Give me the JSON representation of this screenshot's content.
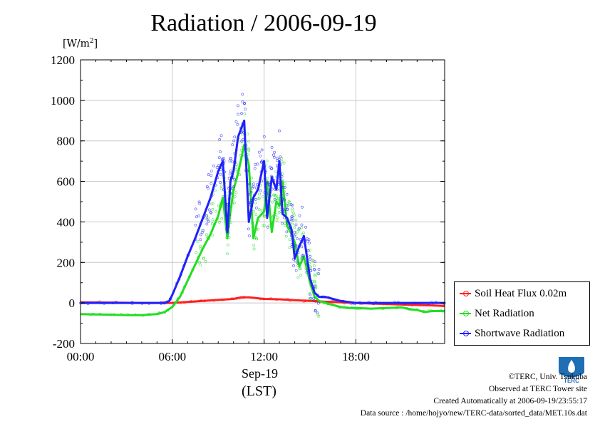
{
  "page": {
    "title": "Radiation / 2006-09-19",
    "y_unit_prefix": "[W/m",
    "y_unit_exp": "2",
    "y_unit_suffix": "]",
    "x_date": "Sep-19",
    "x_zone": "(LST)"
  },
  "credits": {
    "line1": "©TERC, Univ. Tsukuba",
    "line2": "Observed at TERC Tower site",
    "line3": "Created Automatically at 2006-09-19/23:55:17",
    "line4": "Data source : /home/hojyo/new/TERC-data/sorted_data/MET.10s.dat"
  },
  "logo": {
    "label": "TERC"
  },
  "chart_data": {
    "type": "line",
    "title": "Radiation / 2006-09-19",
    "ylabel": "[W/m2]",
    "xlabel": "Sep-19 (LST)",
    "xlim": [
      0,
      23.8
    ],
    "ylim": [
      -200,
      1200
    ],
    "x_ticks": [
      0,
      6,
      12,
      18
    ],
    "x_tick_labels": [
      "00:00",
      "06:00",
      "12:00",
      "18:00"
    ],
    "y_ticks": [
      -200,
      0,
      200,
      400,
      600,
      800,
      1000,
      1200
    ],
    "y_tick_labels": [
      "-200",
      "0",
      "200",
      "400",
      "600",
      "800",
      "1000",
      "1200"
    ],
    "grid": true,
    "legend_position": "right-outside-bottom",
    "colors": {
      "Soil Heat Flux 0.02m": "#ff2020",
      "Net Radiation": "#22dd22",
      "Shortwave Radiation": "#2020ff"
    },
    "series": [
      {
        "name": "Soil Heat Flux 0.02m",
        "x": [
          0,
          2,
          4,
          6,
          7,
          8,
          9,
          10,
          10.5,
          11,
          12,
          13,
          14,
          15,
          16,
          17,
          18,
          19,
          20,
          21,
          22,
          23,
          23.8
        ],
        "y": [
          3,
          2,
          0,
          0,
          5,
          10,
          15,
          20,
          28,
          28,
          20,
          18,
          14,
          10,
          6,
          3,
          0,
          -3,
          -5,
          -8,
          -10,
          -12,
          -15
        ]
      },
      {
        "name": "Net Radiation",
        "x": [
          0,
          1,
          2,
          3,
          4,
          5,
          5.5,
          6,
          6.5,
          7,
          7.5,
          8,
          8.5,
          9,
          9.3,
          9.6,
          9.8,
          10,
          10.3,
          10.7,
          11,
          11.3,
          11.6,
          12,
          12.2,
          12.5,
          12.8,
          13,
          13.2,
          13.5,
          13.8,
          14,
          14.3,
          14.6,
          15,
          15.3,
          15.6,
          16,
          16.5,
          17,
          17.5,
          18,
          19,
          20,
          21,
          21.5,
          22,
          22.5,
          23,
          23.8
        ],
        "y": [
          -55,
          -57,
          -58,
          -60,
          -60,
          -55,
          -45,
          -20,
          30,
          110,
          190,
          270,
          340,
          430,
          520,
          320,
          450,
          560,
          640,
          780,
          680,
          320,
          420,
          450,
          600,
          350,
          500,
          480,
          600,
          380,
          340,
          300,
          180,
          230,
          100,
          30,
          10,
          0,
          -10,
          -20,
          -25,
          -25,
          -28,
          -25,
          -22,
          -30,
          -35,
          -45,
          -40,
          -40
        ]
      },
      {
        "name": "Shortwave Radiation",
        "x": [
          0,
          1,
          2,
          3,
          4,
          5,
          5.5,
          5.8,
          6,
          6.5,
          7,
          7.5,
          8,
          8.5,
          9,
          9.3,
          9.6,
          9.8,
          10,
          10.3,
          10.7,
          11,
          11.3,
          11.6,
          12,
          12.2,
          12.5,
          12.8,
          13,
          13.2,
          13.5,
          13.8,
          14,
          14.3,
          14.6,
          15,
          15.3,
          15.6,
          16,
          16.5,
          17,
          17.5,
          18,
          19,
          20,
          21,
          22,
          23,
          23.8
        ],
        "y": [
          0,
          0,
          0,
          0,
          0,
          0,
          0,
          10,
          40,
          130,
          230,
          320,
          420,
          520,
          650,
          700,
          350,
          600,
          650,
          820,
          900,
          400,
          520,
          560,
          700,
          420,
          620,
          560,
          700,
          440,
          420,
          360,
          220,
          280,
          330,
          120,
          50,
          30,
          30,
          20,
          10,
          5,
          0,
          0,
          0,
          0,
          0,
          0,
          0
        ]
      }
    ]
  }
}
